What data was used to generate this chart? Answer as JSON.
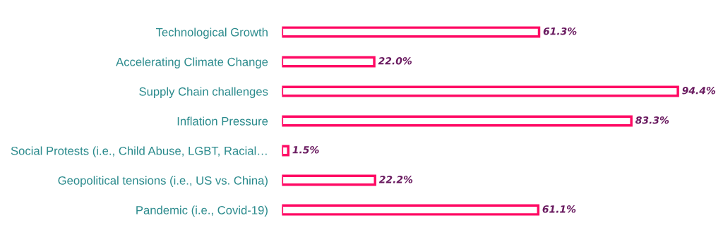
{
  "chart_data": {
    "type": "bar",
    "orientation": "horizontal",
    "categories": [
      "Technological Growth",
      "Accelerating Climate Change",
      "Supply Chain challenges",
      "Inflation Pressure",
      "Social Protests (i.e., Child Abuse, LGBT, Racial…",
      "Geopolitical tensions (i.e., US vs. China)",
      "Pandemic (i.e., Covid-19)"
    ],
    "values": [
      61.3,
      22.0,
      94.4,
      83.3,
      1.5,
      22.2,
      61.1
    ],
    "value_labels": [
      "61.3%",
      "22.0%",
      "94.4%",
      "83.3%",
      "1.5%",
      "22.2%",
      "61.1%"
    ],
    "color": "#ff0a64",
    "grid": false,
    "legend": false,
    "tick_labels": "y"
  }
}
